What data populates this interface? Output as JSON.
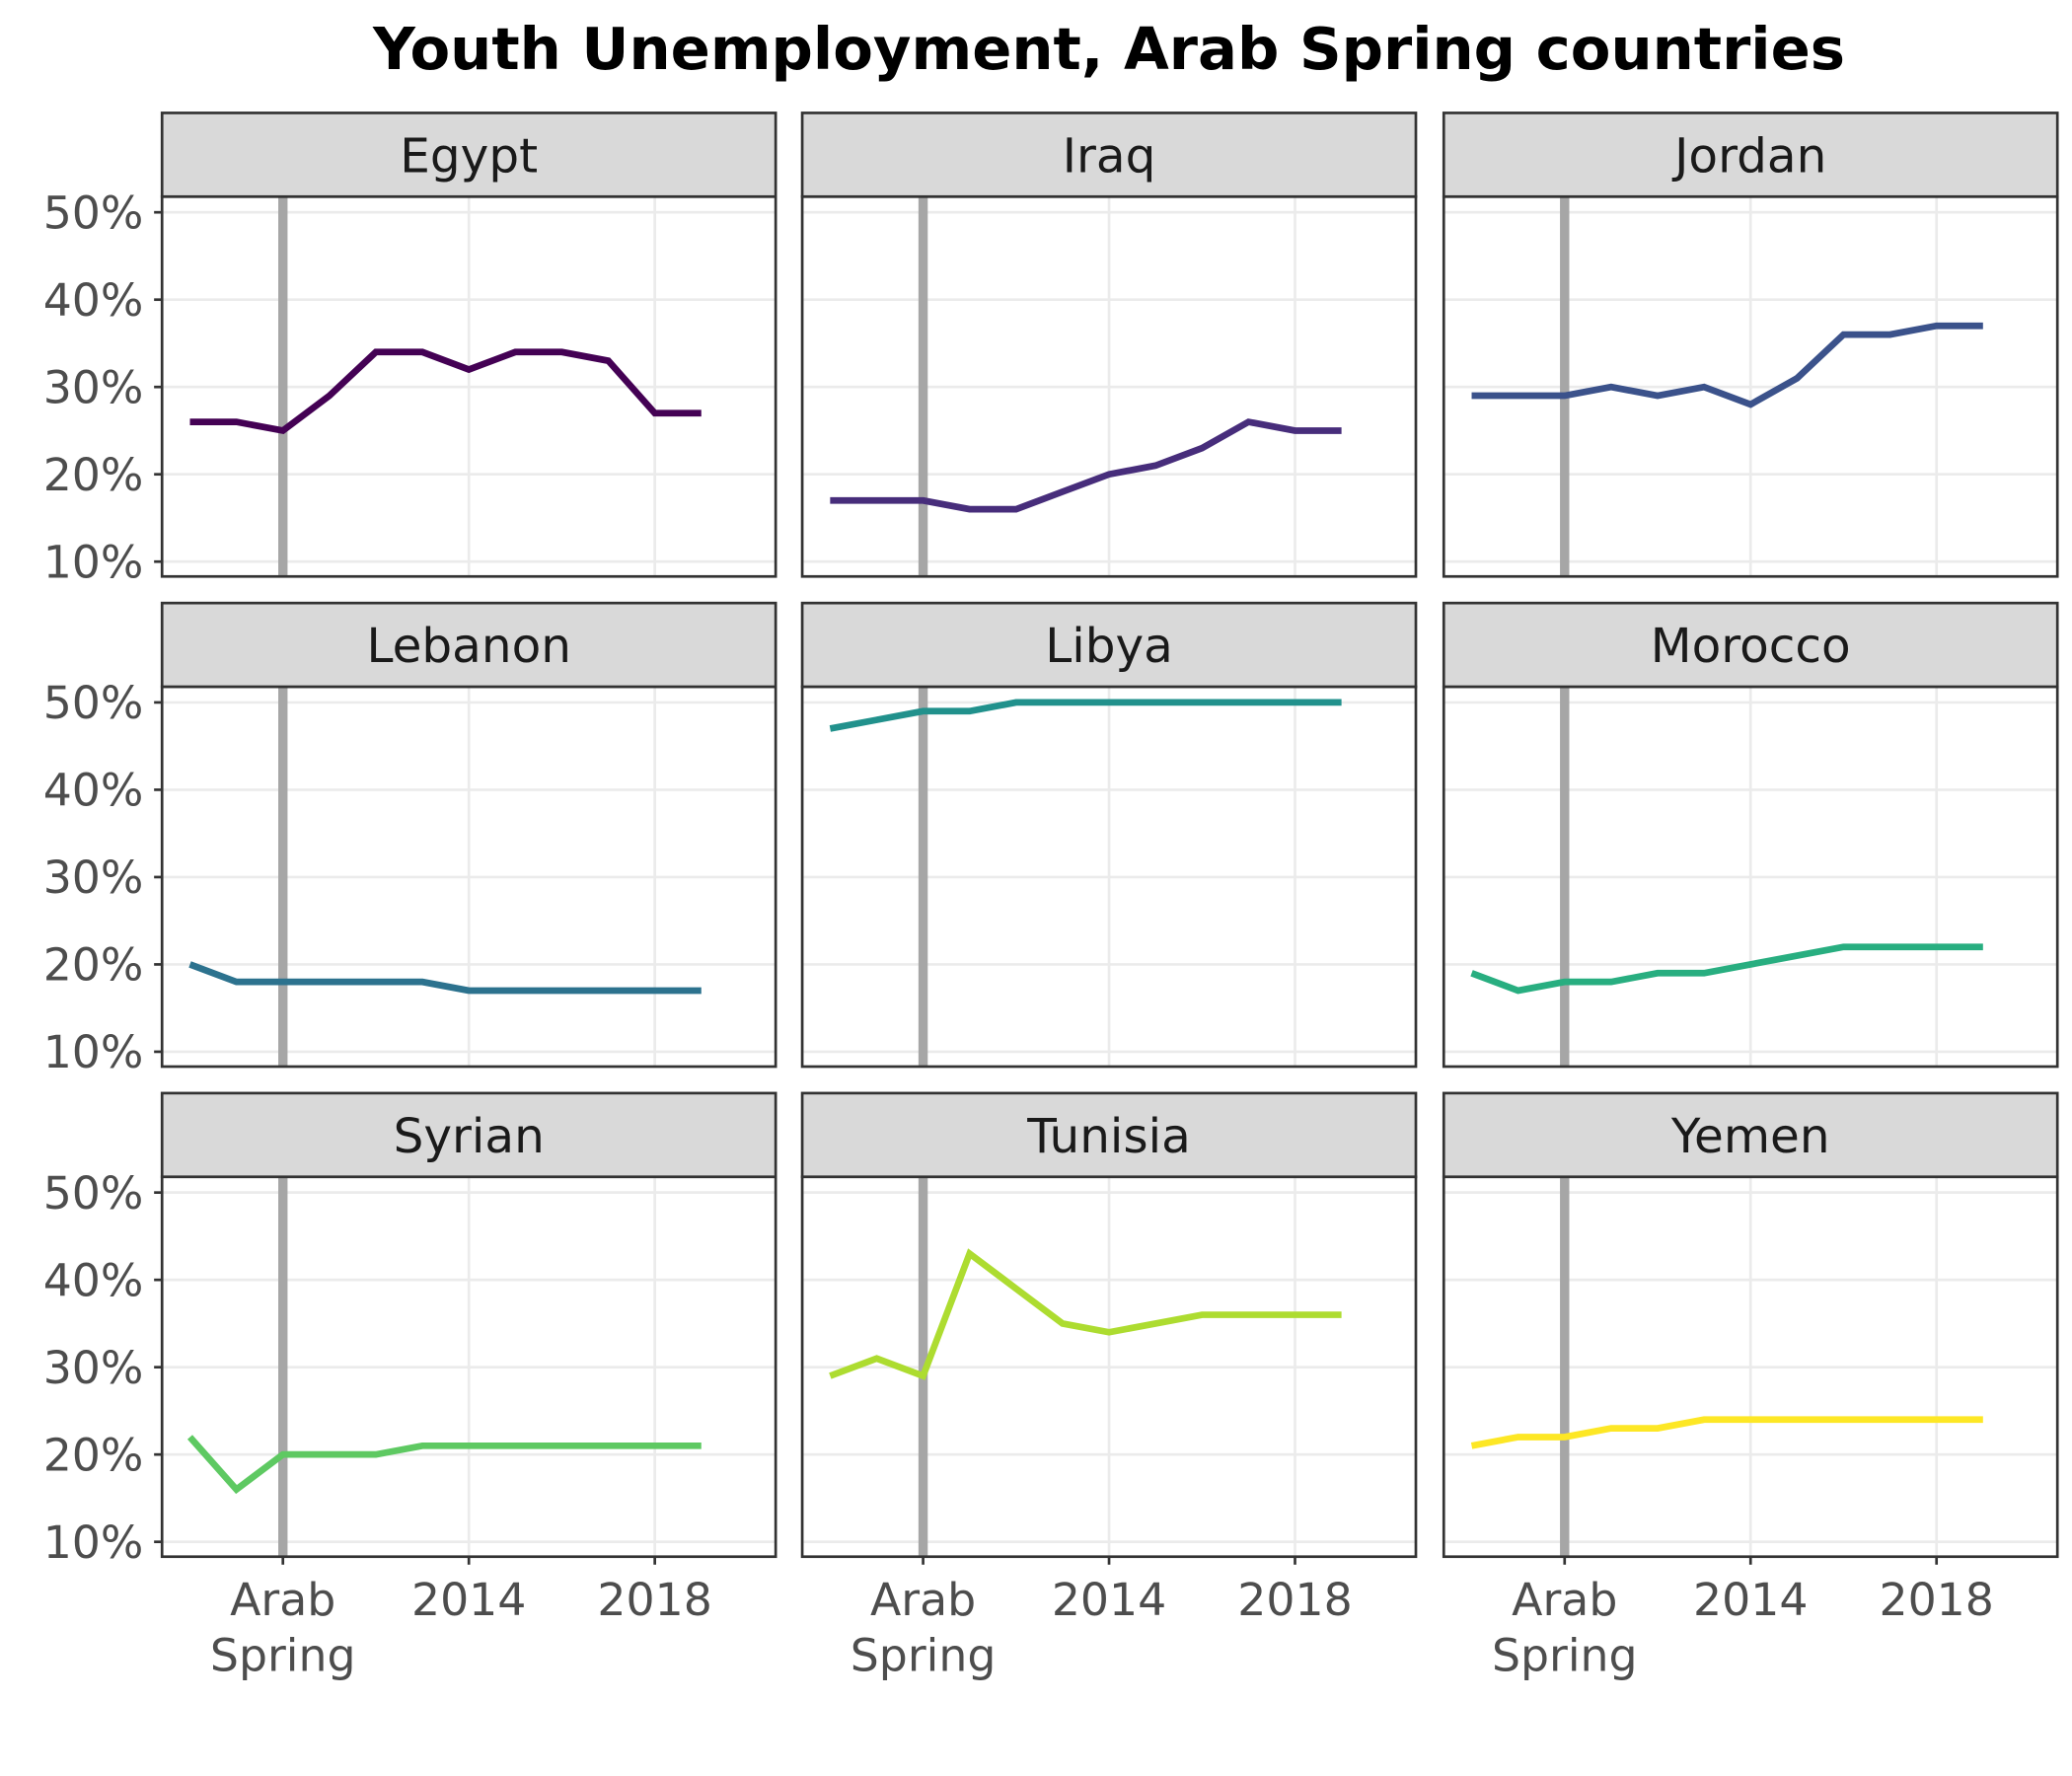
{
  "chart_data": {
    "type": "line",
    "title": "Youth Unemployment, Arab Spring countries",
    "x": [
      2008,
      2009,
      2010,
      2011,
      2012,
      2013,
      2014,
      2015,
      2016,
      2017,
      2018,
      2019
    ],
    "xlim": [
      2007.4,
      2020.6
    ],
    "xticks": [
      {
        "value": 2010,
        "label": "Arab\nSpring"
      },
      2014,
      2018
    ],
    "ylim": [
      8.3,
      51.8
    ],
    "yticks": [
      {
        "value": 10,
        "label": "10%"
      },
      {
        "value": 20,
        "label": "20%"
      },
      {
        "value": 30,
        "label": "30%"
      },
      {
        "value": 40,
        "label": "40%"
      },
      {
        "value": 50,
        "label": "50%"
      }
    ],
    "vline": 2010,
    "grid": true,
    "series": [
      {
        "name": "Egypt",
        "color": "#440154",
        "values": [
          26,
          26,
          25,
          29,
          34,
          34,
          32,
          34,
          34,
          33,
          27,
          27
        ]
      },
      {
        "name": "Iraq",
        "color": "#472d7b",
        "values": [
          17,
          17,
          17,
          16,
          16,
          18,
          20,
          21,
          23,
          26,
          25,
          25
        ]
      },
      {
        "name": "Jordan",
        "color": "#3b528b",
        "values": [
          29,
          29,
          29,
          30,
          29,
          30,
          28,
          31,
          36,
          36,
          37,
          37
        ]
      },
      {
        "name": "Lebanon",
        "color": "#2c728e",
        "values": [
          20,
          18,
          18,
          18,
          18,
          18,
          17,
          17,
          17,
          17,
          17,
          17
        ]
      },
      {
        "name": "Libya",
        "color": "#21918c",
        "values": [
          47,
          48,
          49,
          49,
          50,
          50,
          50,
          50,
          50,
          50,
          50,
          50
        ]
      },
      {
        "name": "Morocco",
        "color": "#28ae80",
        "values": [
          19,
          17,
          18,
          18,
          19,
          19,
          20,
          21,
          22,
          22,
          22,
          22
        ]
      },
      {
        "name": "Syrian",
        "color": "#5ec962",
        "values": [
          22,
          16,
          20,
          20,
          20,
          21,
          21,
          21,
          21,
          21,
          21,
          21
        ]
      },
      {
        "name": "Tunisia",
        "color": "#addc30",
        "values": [
          29,
          31,
          29,
          43,
          39,
          35,
          34,
          35,
          36,
          36,
          36,
          36
        ]
      },
      {
        "name": "Yemen",
        "color": "#fde725",
        "values": [
          21,
          22,
          22,
          23,
          23,
          24,
          24,
          24,
          24,
          24,
          24,
          24
        ]
      }
    ]
  }
}
